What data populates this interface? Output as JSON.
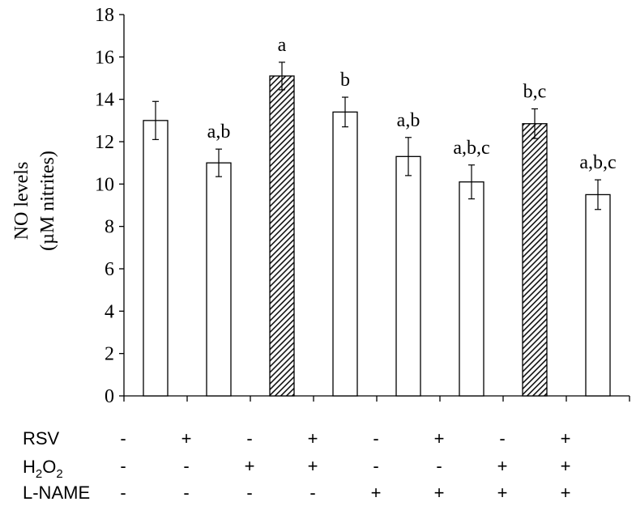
{
  "chart_data": {
    "type": "bar",
    "ylabel_lines": [
      "NO levels",
      "(µM nitrites)"
    ],
    "ylim": [
      0,
      18
    ],
    "yticks": [
      "0",
      "2",
      "4",
      "6",
      "8",
      "10",
      "12",
      "14",
      "16",
      "18"
    ],
    "values": [
      13.0,
      11.0,
      15.1,
      13.4,
      11.3,
      10.1,
      12.85,
      9.5
    ],
    "errors": [
      0.9,
      0.65,
      0.65,
      0.7,
      0.9,
      0.8,
      0.7,
      0.7
    ],
    "significance": [
      "",
      "a,b",
      "a",
      "b",
      "a,b",
      "a,b,c",
      "b,c",
      "a,b,c"
    ],
    "fills": [
      "plain",
      "plain",
      "hatched",
      "plain",
      "plain",
      "plain",
      "hatched",
      "plain"
    ],
    "grid": false,
    "treatments": [
      {
        "label": "RSV",
        "signs": [
          "-",
          "+",
          "-",
          "+",
          "-",
          "+",
          "-",
          "+"
        ]
      },
      {
        "label_main": "H",
        "label_sub": "2",
        "label_main2": "O",
        "label_sub2": "2",
        "signs": [
          "-",
          "-",
          "+",
          "+",
          "-",
          "-",
          "+",
          "+"
        ]
      },
      {
        "label": "L-NAME",
        "signs": [
          "-",
          "-",
          "-",
          "-",
          "+",
          "+",
          "+",
          "+"
        ]
      }
    ]
  }
}
